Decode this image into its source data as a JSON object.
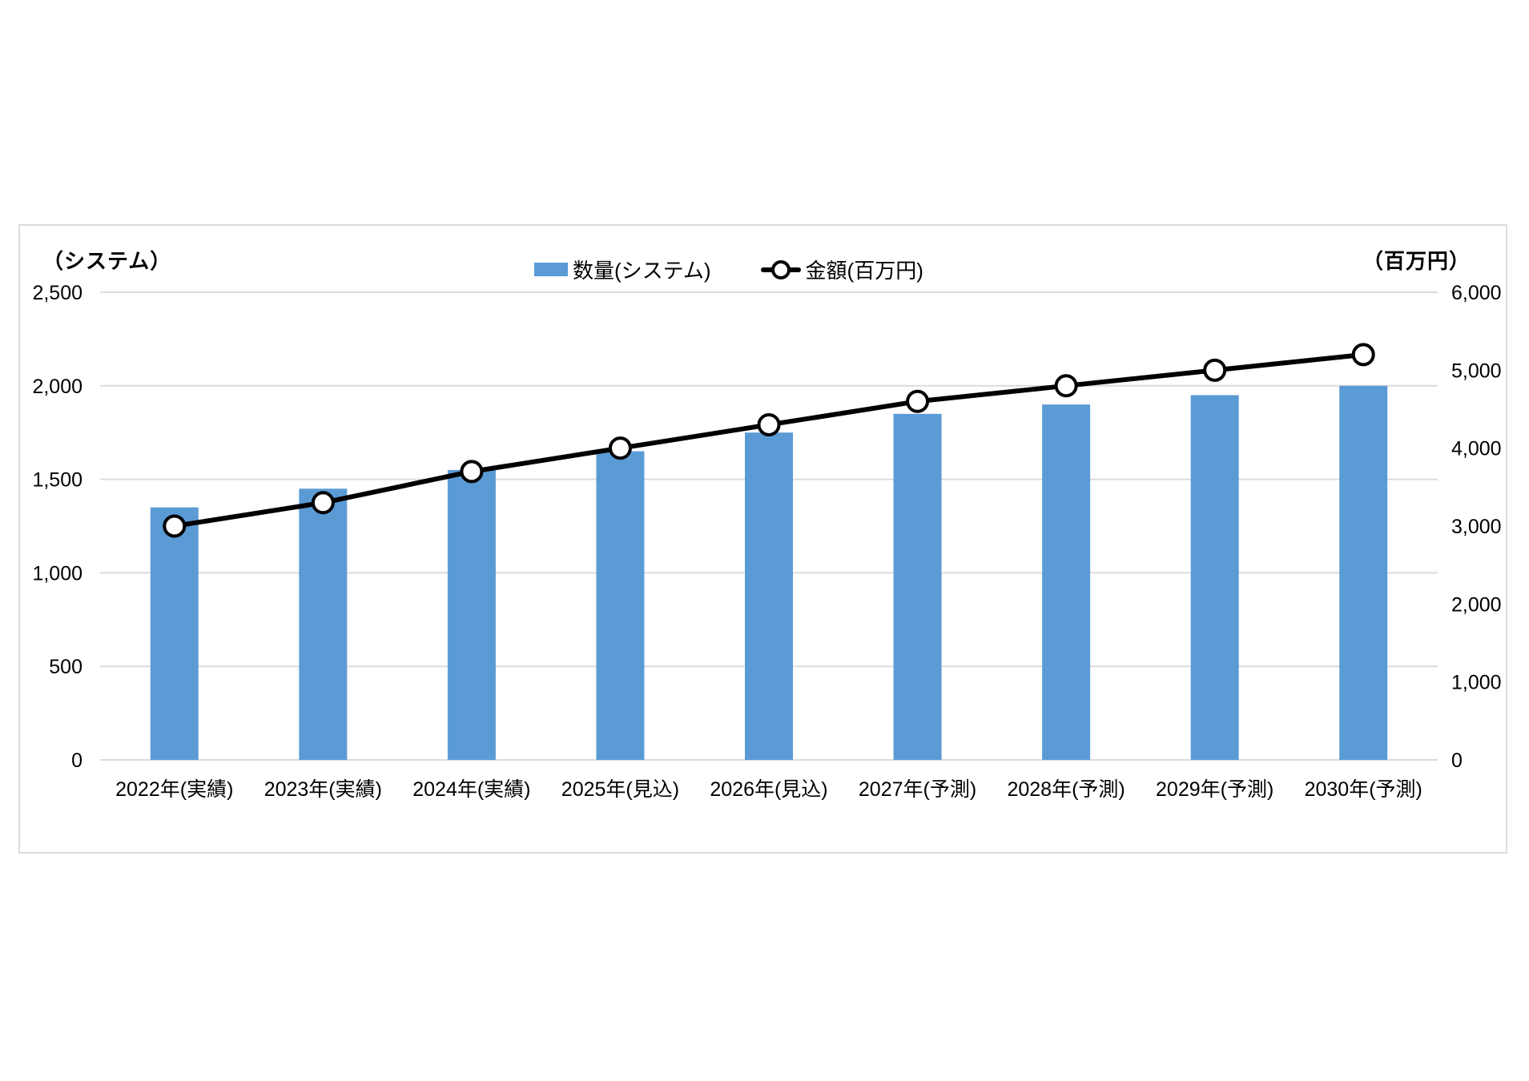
{
  "chart_data": {
    "type": "bar+line combo",
    "title": "",
    "categories": [
      "2022年(実績)",
      "2023年(実績)",
      "2024年(実績)",
      "2025年(見込)",
      "2026年(見込)",
      "2027年(予測)",
      "2028年(予測)",
      "2029年(予測)",
      "2030年(予測)"
    ],
    "series": [
      {
        "name": "数量(システム)",
        "type": "bar",
        "axis": "left",
        "color": "#5B9BD5",
        "values": [
          1350,
          1450,
          1550,
          1650,
          1750,
          1850,
          1900,
          1950,
          2000
        ]
      },
      {
        "name": "金額(百万円)",
        "type": "line",
        "axis": "right",
        "color": "#000000",
        "marker": {
          "fill": "#FFFFFF",
          "stroke": "#000000"
        },
        "values": [
          3000,
          3300,
          3700,
          4000,
          4300,
          4600,
          4800,
          5000,
          5200
        ]
      }
    ],
    "left_axis": {
      "title": "（システム）",
      "min": 0,
      "max": 2500,
      "step": 500,
      "ticks": [
        "0",
        "500",
        "1,000",
        "1,500",
        "2,000",
        "2,500"
      ]
    },
    "right_axis": {
      "title": "（百万円）",
      "min": 0,
      "max": 6000,
      "step": 1000,
      "ticks": [
        "0",
        "1,000",
        "2,000",
        "3,000",
        "4,000",
        "5,000",
        "6,000"
      ]
    },
    "grid": true,
    "legend_position": "top-center",
    "colors": {
      "grid": "#DCDCDC",
      "panel_border": "#DCDCDC",
      "text": "#000000",
      "background": "#FFFFFF"
    }
  }
}
